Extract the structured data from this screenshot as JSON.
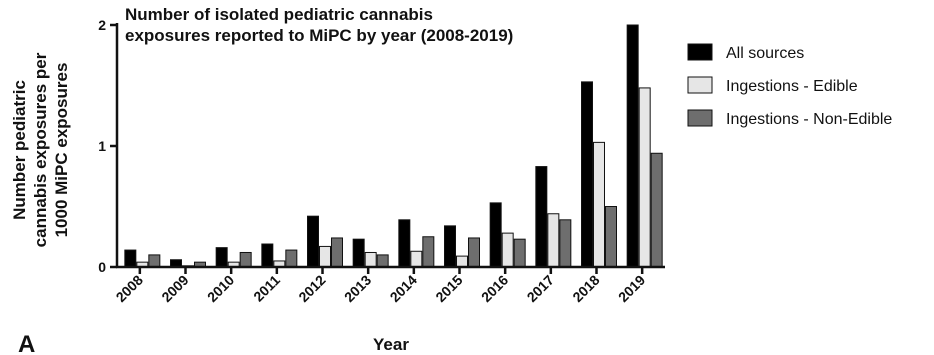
{
  "chart_data": {
    "type": "bar",
    "title": "Number of isolated pediatric cannabis exposures reported to MiPC by year (2008-2019)",
    "title_lines": [
      "Number of isolated pediatric cannabis",
      "exposures reported to MiPC by year (2008-2019)"
    ],
    "xlabel": "Year",
    "ylabel": "Number pediatric cannabis exposures per 1000 MiPC exposures",
    "ylabel_lines": [
      "Number pediatric",
      "cannabis exposures per",
      "1000 MiPC exposures"
    ],
    "ylim": [
      0,
      2
    ],
    "yticks": [
      0,
      1,
      2
    ],
    "yticks_labels": [
      "0",
      "1",
      "2"
    ],
    "legend_position": "right",
    "panel_label": "A",
    "categories": [
      "2008",
      "2009",
      "2010",
      "2011",
      "2012",
      "2013",
      "2014",
      "2015",
      "2016",
      "2017",
      "2018",
      "2019"
    ],
    "series": [
      {
        "name": "All sources",
        "color": "#000000",
        "values": [
          0.14,
          0.06,
          0.16,
          0.19,
          0.42,
          0.23,
          0.39,
          0.34,
          0.53,
          0.83,
          1.53,
          2.0
        ]
      },
      {
        "name": "Ingestions - Edible",
        "color": "#e6e6e6",
        "values": [
          0.04,
          0.01,
          0.04,
          0.05,
          0.17,
          0.12,
          0.13,
          0.09,
          0.28,
          0.44,
          1.03,
          1.48
        ]
      },
      {
        "name": "Ingestions - Non-Edible",
        "color": "#6e6e6e",
        "values": [
          0.1,
          0.04,
          0.12,
          0.14,
          0.24,
          0.1,
          0.25,
          0.24,
          0.23,
          0.39,
          0.5,
          0.94
        ]
      }
    ]
  }
}
